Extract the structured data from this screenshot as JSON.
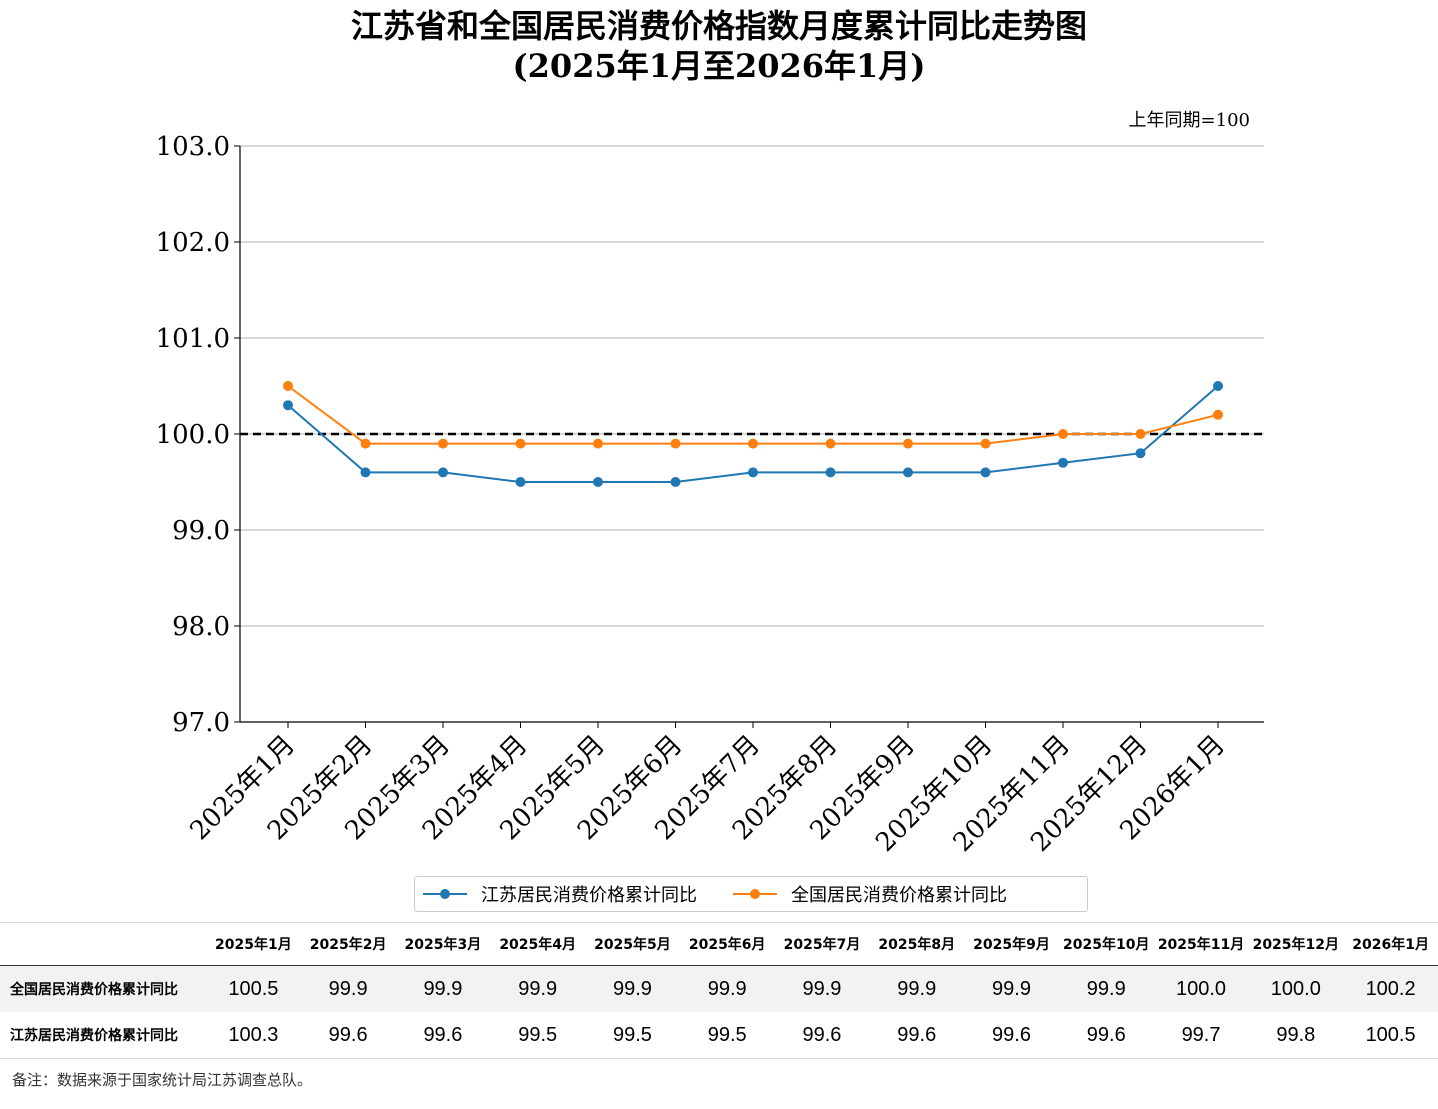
{
  "title": {
    "line1": "江苏省和全国居民消费价格指数月度累计同比走势图",
    "line2": "(2025年1月至2026年1月)"
  },
  "unit_note": "上年同期=100",
  "chart_data": {
    "type": "line",
    "categories": [
      "2025年1月",
      "2025年2月",
      "2025年3月",
      "2025年4月",
      "2025年5月",
      "2025年6月",
      "2025年7月",
      "2025年8月",
      "2025年9月",
      "2025年10月",
      "2025年11月",
      "2025年12月",
      "2026年1月"
    ],
    "series": [
      {
        "name": "江苏居民消费价格累计同比",
        "color": "#1f77b4",
        "values": [
          100.3,
          99.6,
          99.6,
          99.5,
          99.5,
          99.5,
          99.6,
          99.6,
          99.6,
          99.6,
          99.7,
          99.8,
          100.5
        ]
      },
      {
        "name": "全国居民消费价格累计同比",
        "color": "#ff7f0e",
        "values": [
          100.5,
          99.9,
          99.9,
          99.9,
          99.9,
          99.9,
          99.9,
          99.9,
          99.9,
          99.9,
          100.0,
          100.0,
          100.2
        ]
      }
    ],
    "ylim": [
      97.0,
      103.0
    ],
    "yticks": [
      "97.0",
      "98.0",
      "99.0",
      "100.0",
      "101.0",
      "102.0",
      "103.0"
    ],
    "reference_line": 100.0,
    "grid": "horizontal",
    "legend": "bottom-center"
  },
  "table": {
    "columns": [
      "2025年1月",
      "2025年2月",
      "2025年3月",
      "2025年4月",
      "2025年5月",
      "2025年6月",
      "2025年7月",
      "2025年8月",
      "2025年9月",
      "2025年10月",
      "2025年11月",
      "2025年12月",
      "2026年1月"
    ],
    "rows": [
      {
        "label": "全国居民消费价格累计同比",
        "values": [
          "100.5",
          "99.9",
          "99.9",
          "99.9",
          "99.9",
          "99.9",
          "99.9",
          "99.9",
          "99.9",
          "99.9",
          "100.0",
          "100.0",
          "100.2"
        ]
      },
      {
        "label": "江苏居民消费价格累计同比",
        "values": [
          "100.3",
          "99.6",
          "99.6",
          "99.5",
          "99.5",
          "99.5",
          "99.6",
          "99.6",
          "99.6",
          "99.6",
          "99.7",
          "99.8",
          "100.5"
        ]
      }
    ]
  },
  "note": "备注：数据来源于国家统计局江苏调查总队。"
}
